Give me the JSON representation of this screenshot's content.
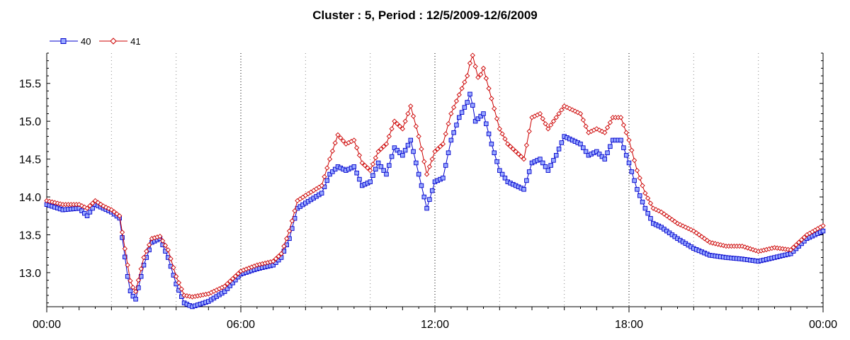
{
  "chart_data": {
    "type": "line",
    "title": "Cluster : 5, Period : 12/5/2009-12/6/2009",
    "xlabel": "",
    "ylabel": "",
    "x_range_hours": [
      0,
      24
    ],
    "ylim": [
      12.55,
      15.9
    ],
    "y_ticks": [
      "13.0",
      "13.5",
      "14.0",
      "14.5",
      "15.0",
      "15.5"
    ],
    "x_ticks": [
      "00:00",
      "06:00",
      "12:00",
      "18:00",
      "00:00"
    ],
    "grid": "vertical dotted",
    "legend": "top-left",
    "series": [
      {
        "name": "40",
        "color": "#0000cc",
        "marker_fill": "#99aaff",
        "marker": "square",
        "points": [
          [
            0.0,
            13.9
          ],
          [
            0.5,
            13.83
          ],
          [
            1.0,
            13.85
          ],
          [
            1.25,
            13.75
          ],
          [
            1.5,
            13.9
          ],
          [
            1.75,
            13.85
          ],
          [
            2.0,
            13.8
          ],
          [
            2.25,
            13.72
          ],
          [
            2.5,
            12.95
          ],
          [
            2.6,
            12.72
          ],
          [
            2.75,
            12.65
          ],
          [
            3.0,
            13.1
          ],
          [
            3.25,
            13.4
          ],
          [
            3.5,
            13.45
          ],
          [
            3.75,
            13.2
          ],
          [
            4.0,
            12.85
          ],
          [
            4.25,
            12.6
          ],
          [
            4.5,
            12.55
          ],
          [
            5.0,
            12.62
          ],
          [
            5.5,
            12.75
          ],
          [
            6.0,
            12.98
          ],
          [
            6.5,
            13.05
          ],
          [
            7.0,
            13.1
          ],
          [
            7.25,
            13.2
          ],
          [
            7.5,
            13.45
          ],
          [
            7.75,
            13.85
          ],
          [
            8.0,
            13.92
          ],
          [
            8.5,
            14.05
          ],
          [
            8.75,
            14.3
          ],
          [
            9.0,
            14.4
          ],
          [
            9.25,
            14.35
          ],
          [
            9.5,
            14.4
          ],
          [
            9.75,
            14.15
          ],
          [
            10.0,
            14.2
          ],
          [
            10.25,
            14.45
          ],
          [
            10.5,
            14.3
          ],
          [
            10.75,
            14.65
          ],
          [
            11.0,
            14.55
          ],
          [
            11.25,
            14.75
          ],
          [
            11.5,
            14.3
          ],
          [
            11.75,
            13.85
          ],
          [
            12.0,
            14.2
          ],
          [
            12.25,
            14.25
          ],
          [
            12.5,
            14.75
          ],
          [
            12.75,
            15.05
          ],
          [
            13.0,
            15.25
          ],
          [
            13.1,
            15.38
          ],
          [
            13.25,
            15.0
          ],
          [
            13.5,
            15.1
          ],
          [
            13.75,
            14.7
          ],
          [
            14.0,
            14.35
          ],
          [
            14.25,
            14.2
          ],
          [
            14.5,
            14.15
          ],
          [
            14.75,
            14.1
          ],
          [
            15.0,
            14.45
          ],
          [
            15.25,
            14.5
          ],
          [
            15.5,
            14.35
          ],
          [
            15.75,
            14.55
          ],
          [
            16.0,
            14.8
          ],
          [
            16.25,
            14.75
          ],
          [
            16.5,
            14.7
          ],
          [
            16.75,
            14.55
          ],
          [
            17.0,
            14.6
          ],
          [
            17.25,
            14.5
          ],
          [
            17.5,
            14.75
          ],
          [
            17.75,
            14.75
          ],
          [
            18.0,
            14.45
          ],
          [
            18.25,
            14.1
          ],
          [
            18.5,
            13.85
          ],
          [
            18.75,
            13.65
          ],
          [
            19.0,
            13.6
          ],
          [
            19.5,
            13.45
          ],
          [
            20.0,
            13.32
          ],
          [
            20.5,
            13.23
          ],
          [
            21.0,
            13.2
          ],
          [
            21.5,
            13.18
          ],
          [
            22.0,
            13.15
          ],
          [
            22.5,
            13.2
          ],
          [
            23.0,
            13.25
          ],
          [
            23.5,
            13.45
          ],
          [
            24.0,
            13.55
          ]
        ]
      },
      {
        "name": "41",
        "color": "#cc0000",
        "marker_fill": "#ffffff",
        "marker": "diamond",
        "points": [
          [
            0.0,
            13.95
          ],
          [
            0.5,
            13.9
          ],
          [
            1.0,
            13.9
          ],
          [
            1.25,
            13.85
          ],
          [
            1.5,
            13.95
          ],
          [
            1.75,
            13.88
          ],
          [
            2.0,
            13.83
          ],
          [
            2.25,
            13.75
          ],
          [
            2.5,
            13.1
          ],
          [
            2.6,
            12.85
          ],
          [
            2.75,
            12.75
          ],
          [
            3.0,
            13.2
          ],
          [
            3.25,
            13.45
          ],
          [
            3.5,
            13.48
          ],
          [
            3.75,
            13.3
          ],
          [
            4.0,
            12.95
          ],
          [
            4.25,
            12.7
          ],
          [
            4.5,
            12.68
          ],
          [
            5.0,
            12.72
          ],
          [
            5.5,
            12.82
          ],
          [
            6.0,
            13.02
          ],
          [
            6.5,
            13.1
          ],
          [
            7.0,
            13.15
          ],
          [
            7.25,
            13.25
          ],
          [
            7.5,
            13.55
          ],
          [
            7.75,
            13.95
          ],
          [
            8.0,
            14.02
          ],
          [
            8.5,
            14.15
          ],
          [
            8.75,
            14.5
          ],
          [
            9.0,
            14.82
          ],
          [
            9.25,
            14.7
          ],
          [
            9.5,
            14.75
          ],
          [
            9.75,
            14.45
          ],
          [
            10.0,
            14.35
          ],
          [
            10.25,
            14.6
          ],
          [
            10.5,
            14.7
          ],
          [
            10.75,
            15.0
          ],
          [
            11.0,
            14.9
          ],
          [
            11.25,
            15.2
          ],
          [
            11.5,
            14.8
          ],
          [
            11.75,
            14.3
          ],
          [
            12.0,
            14.6
          ],
          [
            12.25,
            14.7
          ],
          [
            12.5,
            15.1
          ],
          [
            12.75,
            15.35
          ],
          [
            13.0,
            15.6
          ],
          [
            13.15,
            15.9
          ],
          [
            13.35,
            15.55
          ],
          [
            13.5,
            15.7
          ],
          [
            13.75,
            15.3
          ],
          [
            14.0,
            14.9
          ],
          [
            14.25,
            14.7
          ],
          [
            14.5,
            14.6
          ],
          [
            14.75,
            14.5
          ],
          [
            15.0,
            15.05
          ],
          [
            15.25,
            15.1
          ],
          [
            15.5,
            14.9
          ],
          [
            15.75,
            15.05
          ],
          [
            16.0,
            15.2
          ],
          [
            16.25,
            15.15
          ],
          [
            16.5,
            15.1
          ],
          [
            16.75,
            14.85
          ],
          [
            17.0,
            14.9
          ],
          [
            17.25,
            14.85
          ],
          [
            17.5,
            15.05
          ],
          [
            17.75,
            15.05
          ],
          [
            18.0,
            14.75
          ],
          [
            18.25,
            14.35
          ],
          [
            18.5,
            14.05
          ],
          [
            18.75,
            13.85
          ],
          [
            19.0,
            13.8
          ],
          [
            19.5,
            13.65
          ],
          [
            20.0,
            13.55
          ],
          [
            20.5,
            13.4
          ],
          [
            21.0,
            13.35
          ],
          [
            21.5,
            13.35
          ],
          [
            22.0,
            13.28
          ],
          [
            22.5,
            13.33
          ],
          [
            23.0,
            13.3
          ],
          [
            23.5,
            13.5
          ],
          [
            24.0,
            13.62
          ]
        ]
      }
    ]
  }
}
